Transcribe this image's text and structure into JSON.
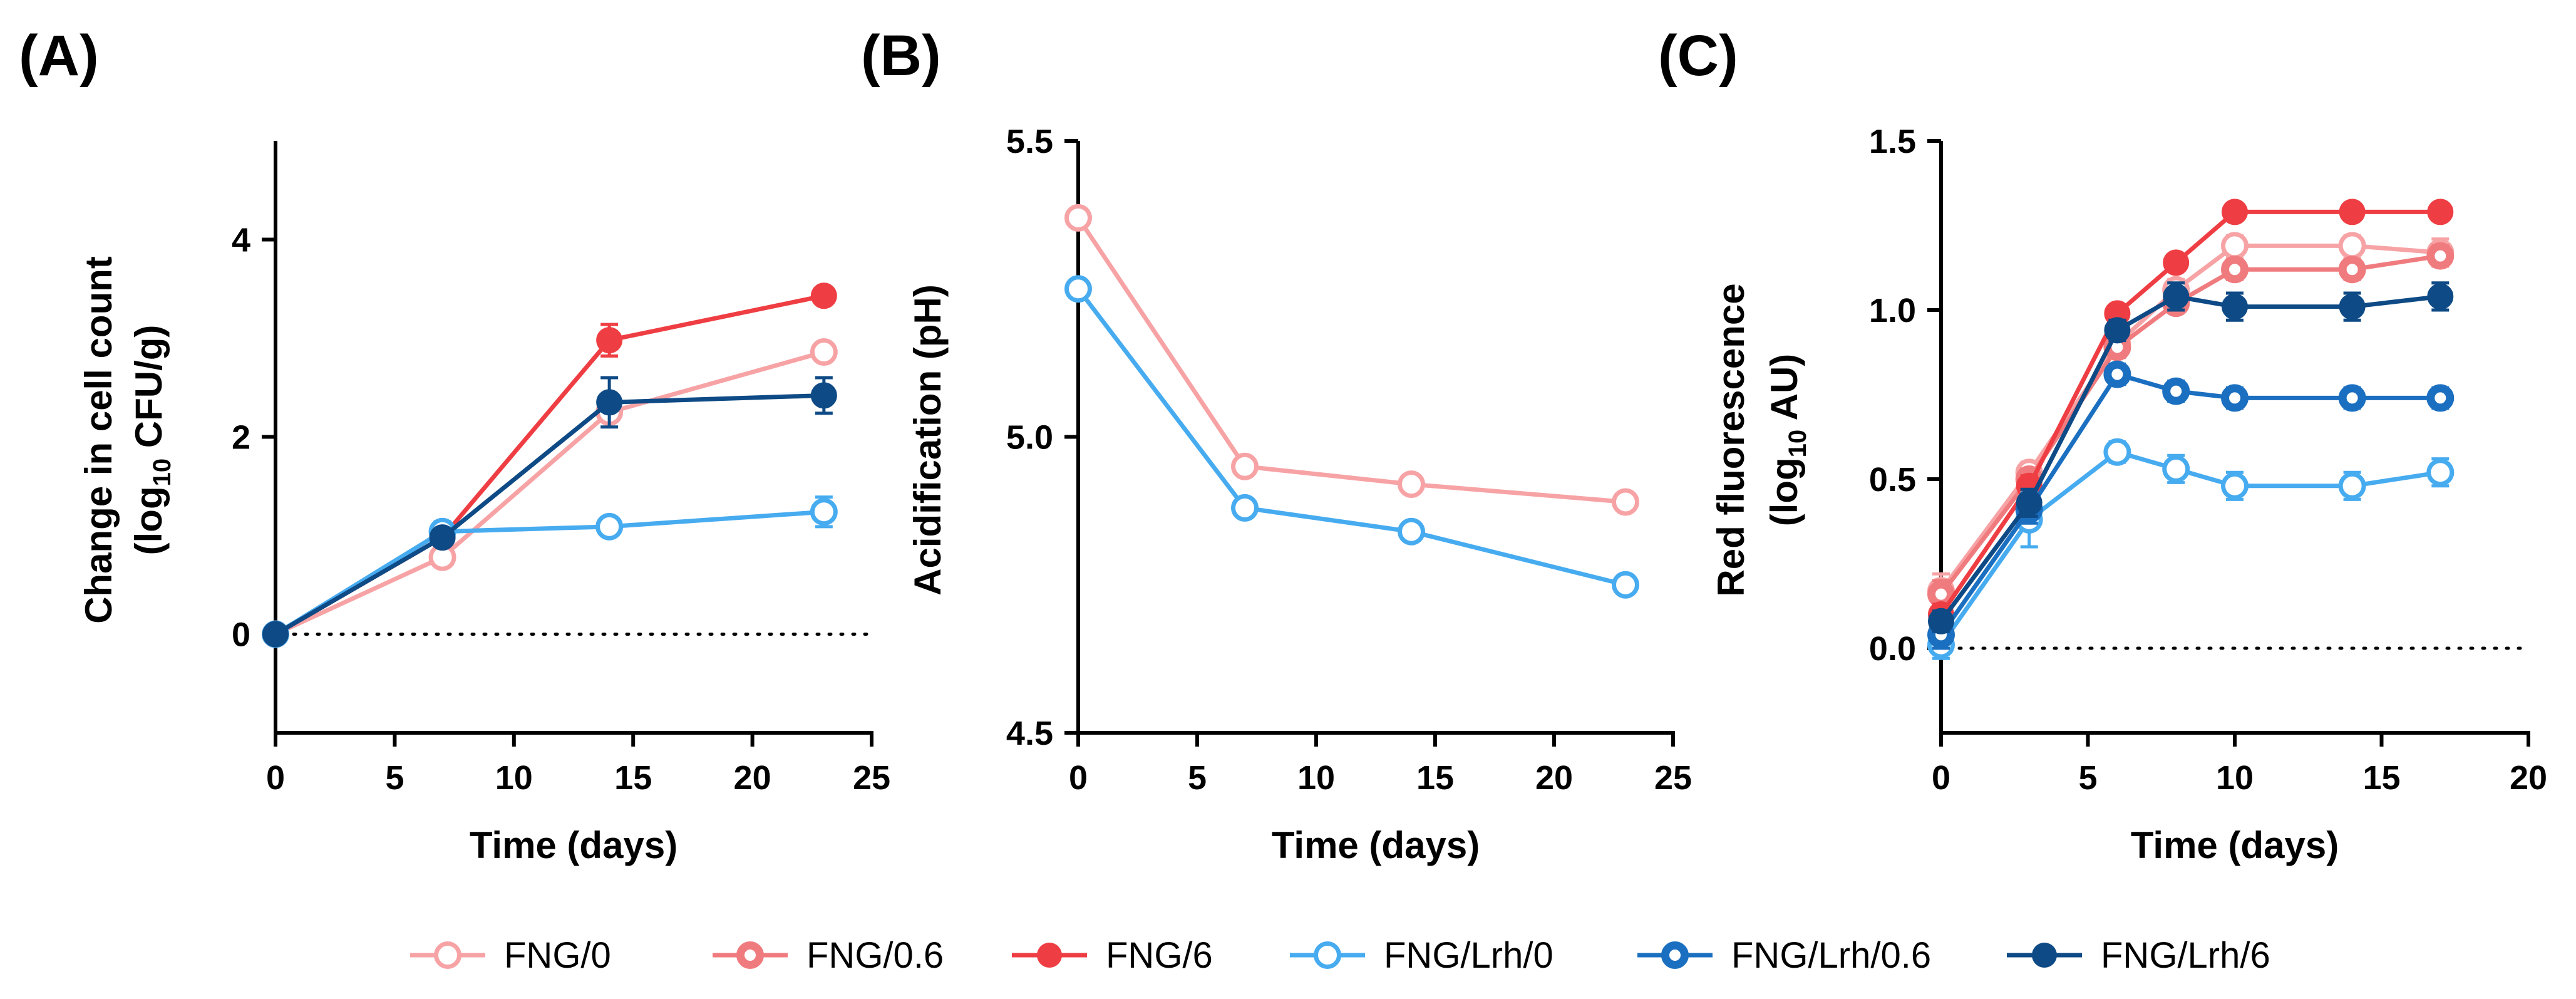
{
  "legend": [
    {
      "name": "FNG/0",
      "color": "#F7A3A5",
      "marker": "open",
      "open_width": 7
    },
    {
      "name": "FNG/0.6",
      "color": "#F07B7E",
      "marker": "open",
      "open_width": 13
    },
    {
      "name": "FNG/6",
      "color": "#EF3E43",
      "marker": "filled",
      "open_width": 0
    },
    {
      "name": "FNG/Lrh/0",
      "color": "#47ABF0",
      "marker": "open",
      "open_width": 7
    },
    {
      "name": "FNG/Lrh/0.6",
      "color": "#1B6FC0",
      "marker": "open",
      "open_width": 13
    },
    {
      "name": "FNG/Lrh/6",
      "color": "#0E4A85",
      "marker": "filled",
      "open_width": 0
    }
  ],
  "chart_data": [
    {
      "panel": "(A)",
      "type": "line",
      "xlabel": "Time (days)",
      "ylabel_main": "Change in cell count",
      "ylabel_sub_pre": "(log",
      "ylabel_sub_sub": "10",
      "ylabel_sub_post": " CFU/g)",
      "xlim": [
        0,
        25
      ],
      "ylim": [
        -1,
        5
      ],
      "xticks": [
        0,
        5,
        10,
        15,
        20,
        25
      ],
      "yticks": [
        0,
        2,
        4
      ],
      "xtick_labels": [
        "0",
        "5",
        "10",
        "15",
        "20",
        "25"
      ],
      "ytick_labels": [
        "0",
        "2",
        "4"
      ],
      "zero_line": true,
      "series": [
        {
          "name": "FNG/0",
          "x": [
            0,
            7,
            14,
            23
          ],
          "y": [
            0,
            0.78,
            2.25,
            2.86
          ],
          "err": [
            0,
            0.08,
            0.08,
            0.06
          ]
        },
        {
          "name": "FNG/6",
          "x": [
            0,
            7,
            14,
            23
          ],
          "y": [
            0,
            0.98,
            2.98,
            3.43
          ],
          "err": [
            0,
            0.06,
            0.16,
            0.05
          ]
        },
        {
          "name": "FNG/Lrh/0",
          "x": [
            0,
            7,
            14,
            23
          ],
          "y": [
            0,
            1.04,
            1.09,
            1.24
          ],
          "err": [
            0,
            0.1,
            0.07,
            0.15
          ]
        },
        {
          "name": "FNG/Lrh/6",
          "x": [
            0,
            7,
            14,
            23
          ],
          "y": [
            0,
            0.98,
            2.35,
            2.42
          ],
          "err": [
            0,
            0.08,
            0.25,
            0.18
          ]
        }
      ]
    },
    {
      "panel": "(B)",
      "type": "line",
      "xlabel": "Time (days)",
      "ylabel_main": "Acidification (pH)",
      "ylabel_sub_pre": "",
      "ylabel_sub_sub": "",
      "ylabel_sub_post": "",
      "xlim": [
        0,
        25
      ],
      "ylim": [
        4.5,
        5.5
      ],
      "xticks": [
        0,
        5,
        10,
        15,
        20,
        25
      ],
      "yticks": [
        4.5,
        5.0,
        5.5
      ],
      "xtick_labels": [
        "0",
        "5",
        "10",
        "15",
        "20",
        "25"
      ],
      "ytick_labels": [
        "4.5",
        "5.0",
        "5.5"
      ],
      "zero_line": false,
      "series": [
        {
          "name": "FNG/0",
          "x": [
            0,
            7,
            14,
            23
          ],
          "y": [
            5.37,
            4.95,
            4.92,
            4.89
          ],
          "err": [
            0,
            0,
            0,
            0
          ]
        },
        {
          "name": "FNG/Lrh/0",
          "x": [
            0,
            7,
            14,
            23
          ],
          "y": [
            5.25,
            4.88,
            4.84,
            4.75
          ],
          "err": [
            0,
            0,
            0,
            0
          ]
        }
      ]
    },
    {
      "panel": "(C)",
      "type": "line",
      "xlabel": "Time (days)",
      "ylabel_main": "Red fluorescence",
      "ylabel_sub_pre": "(log",
      "ylabel_sub_sub": "10",
      "ylabel_sub_post": " AU)",
      "xlim": [
        0,
        20
      ],
      "ylim": [
        -0.25,
        1.5
      ],
      "xticks": [
        0,
        5,
        10,
        15,
        20
      ],
      "yticks": [
        0.0,
        0.5,
        1.0,
        1.5
      ],
      "xtick_labels": [
        "0",
        "5",
        "10",
        "15",
        "20"
      ],
      "ytick_labels": [
        "0.0",
        "0.5",
        "1.0",
        "1.5"
      ],
      "zero_line": true,
      "series": [
        {
          "name": "FNG/0",
          "x": [
            0,
            3,
            6,
            8,
            10,
            14,
            17
          ],
          "y": [
            0.17,
            0.52,
            0.9,
            1.06,
            1.19,
            1.19,
            1.17
          ],
          "err": [
            0.05,
            0.03,
            0.03,
            0.03,
            0.03,
            0.03,
            0.04
          ]
        },
        {
          "name": "FNG/0.6",
          "x": [
            0,
            3,
            6,
            8,
            10,
            14,
            17
          ],
          "y": [
            0.16,
            0.5,
            0.89,
            1.02,
            1.12,
            1.12,
            1.16
          ],
          "err": [
            0.04,
            0.03,
            0.03,
            0.02,
            0.03,
            0.03,
            0.03
          ]
        },
        {
          "name": "FNG/6",
          "x": [
            0,
            3,
            6,
            8,
            10,
            14,
            17
          ],
          "y": [
            0.1,
            0.48,
            0.99,
            1.14,
            1.29,
            1.29,
            1.29
          ],
          "err": [
            0.03,
            0.03,
            0.02,
            0.02,
            0.02,
            0.02,
            0.02
          ]
        },
        {
          "name": "FNG/Lrh/0",
          "x": [
            0,
            3,
            6,
            8,
            10,
            14,
            17
          ],
          "y": [
            0.01,
            0.38,
            0.58,
            0.53,
            0.48,
            0.48,
            0.52
          ],
          "err": [
            0.04,
            0.08,
            0.03,
            0.04,
            0.04,
            0.04,
            0.04
          ]
        },
        {
          "name": "FNG/Lrh/0.6",
          "x": [
            0,
            3,
            6,
            8,
            10,
            14,
            17
          ],
          "y": [
            0.04,
            0.41,
            0.81,
            0.76,
            0.74,
            0.74,
            0.74
          ],
          "err": [
            0.04,
            0.04,
            0.03,
            0.03,
            0.03,
            0.03,
            0.03
          ]
        },
        {
          "name": "FNG/Lrh/6",
          "x": [
            0,
            3,
            6,
            8,
            10,
            14,
            17
          ],
          "y": [
            0.08,
            0.43,
            0.94,
            1.04,
            1.01,
            1.01,
            1.04
          ],
          "err": [
            0.03,
            0.04,
            0.03,
            0.04,
            0.04,
            0.04,
            0.04
          ]
        }
      ]
    }
  ]
}
